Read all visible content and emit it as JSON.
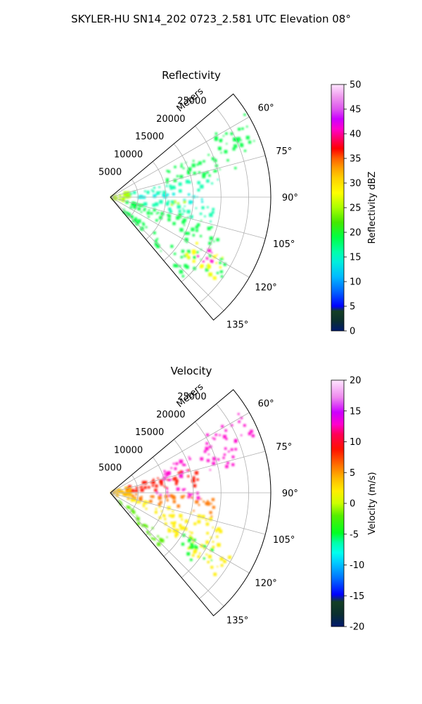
{
  "figure": {
    "suptitle": "SKYLER-HU  SN14_202  0723_2.581 UTC Elevation 08°"
  },
  "chart_data": [
    {
      "type": "polar-sector",
      "title": "Reflectivity",
      "radial_label": "Meters",
      "radial_ticks": [
        5000,
        10000,
        15000,
        20000,
        25000
      ],
      "radial_tick_labels": [
        "5000",
        "10000",
        "15000",
        "20000",
        "25000"
      ],
      "rlim": [
        0,
        29000
      ],
      "theta_ticks": [
        60,
        75,
        90,
        105,
        120,
        135
      ],
      "theta_tick_labels": [
        "60°",
        "75°",
        "90°",
        "105°",
        "120°",
        "135°"
      ],
      "thetalim": [
        50,
        140
      ],
      "grid": true,
      "colorbar": {
        "label": "Reflectivity dBZ",
        "range": [
          0,
          50
        ],
        "ticks": [
          "0",
          "5",
          "10",
          "15",
          "20",
          "25",
          "30",
          "35",
          "40",
          "45",
          "50"
        ]
      },
      "echo_regions": [
        {
          "theta": [
            58,
            70
          ],
          "r": [
            21000,
            28500
          ],
          "value": 20
        },
        {
          "theta": [
            65,
            78
          ],
          "r": [
            9000,
            26000
          ],
          "value": 19
        },
        {
          "theta": [
            78,
            86
          ],
          "r": [
            3000,
            20000
          ],
          "value": 16
        },
        {
          "theta": [
            86,
            94
          ],
          "r": [
            5000,
            17000
          ],
          "value": 14
        },
        {
          "theta": [
            92,
            98
          ],
          "r": [
            11000,
            14500
          ],
          "value": 27
        },
        {
          "theta": [
            94,
            104
          ],
          "r": [
            6000,
            19000
          ],
          "value": 17
        },
        {
          "theta": [
            104,
            118
          ],
          "r": [
            3000,
            21000
          ],
          "value": 20
        },
        {
          "theta": [
            118,
            128
          ],
          "r": [
            15000,
            25000
          ],
          "value": 19
        },
        {
          "theta": [
            128,
            138
          ],
          "r": [
            3000,
            20000
          ],
          "value": 19
        },
        {
          "theta": [
            116,
            128
          ],
          "r": [
            17000,
            24000
          ],
          "value": 30
        },
        {
          "theta": [
            118,
            126
          ],
          "r": [
            19000,
            22500
          ],
          "value": 42
        },
        {
          "theta": [
            70,
            112
          ],
          "r": [
            200,
            3500
          ],
          "value": 27
        }
      ]
    },
    {
      "type": "polar-sector",
      "title": "Velocity",
      "radial_label": "Meters",
      "radial_ticks": [
        5000,
        10000,
        15000,
        20000,
        25000
      ],
      "radial_tick_labels": [
        "5000",
        "10000",
        "15000",
        "20000",
        "25000"
      ],
      "rlim": [
        0,
        29000
      ],
      "theta_ticks": [
        60,
        75,
        90,
        105,
        120,
        135
      ],
      "theta_tick_labels": [
        "60°",
        "75°",
        "90°",
        "105°",
        "120°",
        "135°"
      ],
      "thetalim": [
        50,
        140
      ],
      "grid": true,
      "colorbar": {
        "label": "Velocity (m/s)",
        "range": [
          -20,
          20
        ],
        "ticks": [
          "-20",
          "-15",
          "-10",
          "-5",
          "0",
          "5",
          "10",
          "15",
          "20"
        ]
      },
      "echo_regions": [
        {
          "theta": [
            58,
            70
          ],
          "r": [
            19000,
            28500
          ],
          "value": 13
        },
        {
          "theta": [
            65,
            78
          ],
          "r": [
            10000,
            24000
          ],
          "value": 13
        },
        {
          "theta": [
            72,
            88
          ],
          "r": [
            3000,
            16000
          ],
          "value": 9
        },
        {
          "theta": [
            86,
            94
          ],
          "r": [
            8000,
            16000
          ],
          "value": 14
        },
        {
          "theta": [
            92,
            104
          ],
          "r": [
            4000,
            19000
          ],
          "value": 8
        },
        {
          "theta": [
            104,
            118
          ],
          "r": [
            3000,
            22000
          ],
          "value": 3
        },
        {
          "theta": [
            118,
            128
          ],
          "r": [
            10000,
            25000
          ],
          "value": 2
        },
        {
          "theta": [
            128,
            138
          ],
          "r": [
            2000,
            14000
          ],
          "value": -2
        },
        {
          "theta": [
            118,
            130
          ],
          "r": [
            15000,
            22000
          ],
          "value": -3
        },
        {
          "theta": [
            70,
            110
          ],
          "r": [
            200,
            4000
          ],
          "value": 5
        }
      ]
    }
  ]
}
